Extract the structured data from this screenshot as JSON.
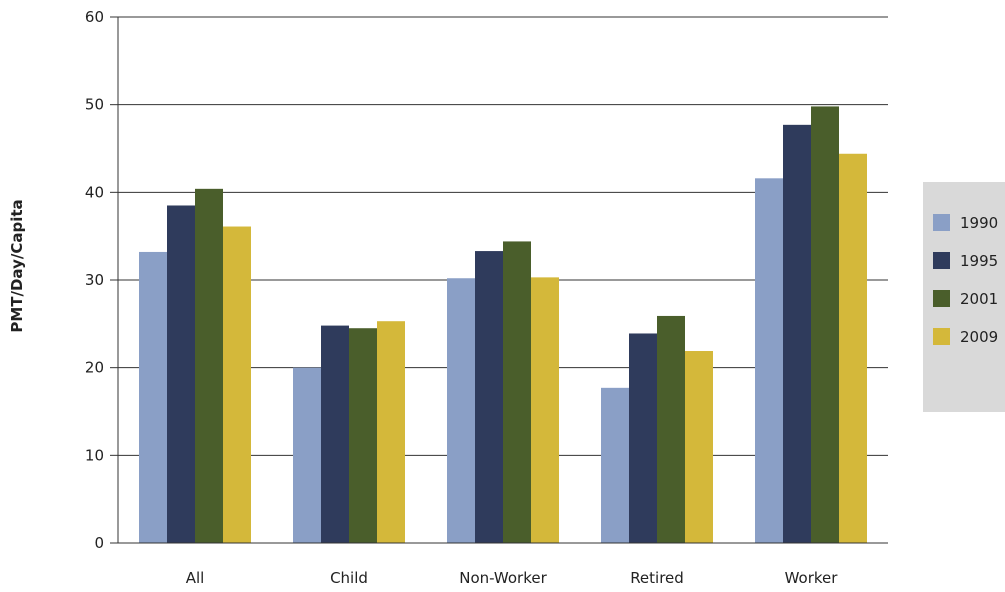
{
  "chart_data": {
    "type": "bar",
    "title": "",
    "xlabel": "",
    "ylabel": "PMT/Day/Capita",
    "ylim": [
      0,
      60
    ],
    "yticks": [
      0,
      10,
      20,
      30,
      40,
      50,
      60
    ],
    "grid": true,
    "legend_position": "right",
    "categories": [
      "All",
      "Child",
      "Non-Worker",
      "Retired",
      "Worker"
    ],
    "series": [
      {
        "name": "1990",
        "color": "#8a9fc6",
        "values": [
          33.2,
          20.0,
          30.2,
          17.7,
          41.6
        ]
      },
      {
        "name": "1995",
        "color": "#2f3b5c",
        "values": [
          38.5,
          24.8,
          33.3,
          23.9,
          47.7
        ]
      },
      {
        "name": "2001",
        "color": "#4a5e2b",
        "values": [
          40.4,
          24.5,
          34.4,
          25.9,
          49.8
        ]
      },
      {
        "name": "2009",
        "color": "#d4b83a",
        "values": [
          36.1,
          25.3,
          30.3,
          21.9,
          44.4
        ]
      }
    ]
  },
  "legend_background": "#d9d9d9"
}
